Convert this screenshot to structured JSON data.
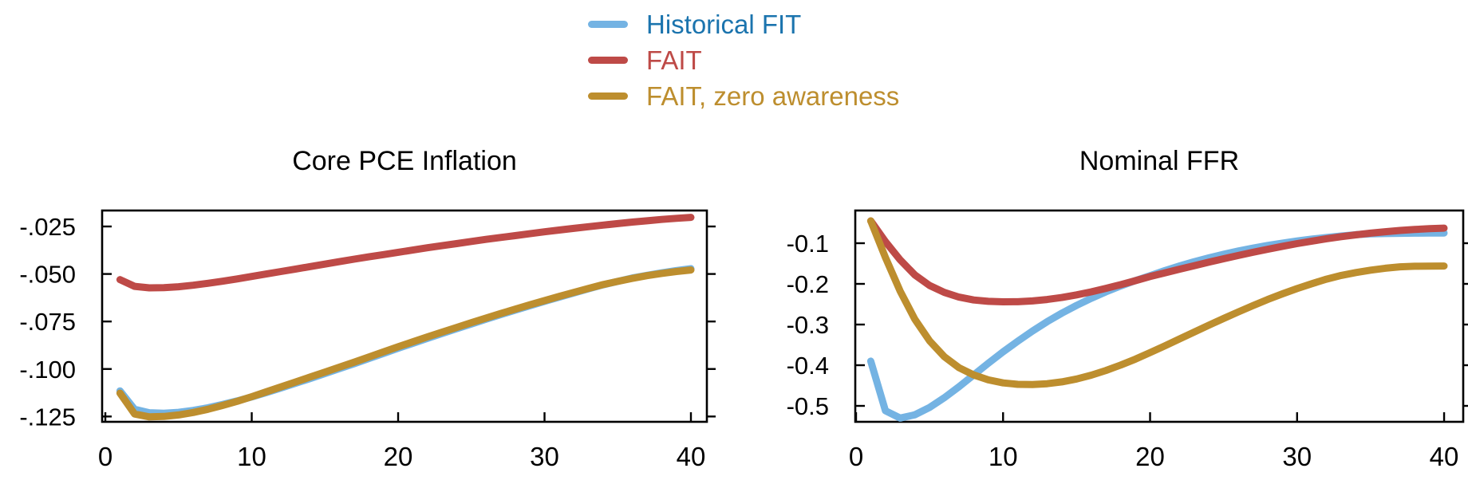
{
  "page": {
    "background": "#ffffff",
    "text_color": "#000000",
    "axis_color": "#000000"
  },
  "legend": {
    "position": "top-center",
    "items": [
      {
        "label": "Historical FIT",
        "swatch_color": "#74b3e3",
        "text_color": "#1b74ae"
      },
      {
        "label": "FAIT",
        "swatch_color": "#be4a47",
        "text_color": "#be4a47"
      },
      {
        "label": "FAIT, zero awareness",
        "swatch_color": "#bd8e2e",
        "text_color": "#bd8e2e"
      }
    ]
  },
  "chart_data": [
    {
      "type": "line",
      "title": "Core PCE Inflation",
      "xlabel": "",
      "ylabel": "",
      "grid": false,
      "x_range": [
        -0.22,
        41.09
      ],
      "y_range": [
        -0.1278,
        -0.0166
      ],
      "x_ticks": [
        {
          "value": 0,
          "label": "0"
        },
        {
          "value": 10,
          "label": "10"
        },
        {
          "value": 20,
          "label": "20"
        },
        {
          "value": 30,
          "label": "30"
        },
        {
          "value": 40,
          "label": "40"
        }
      ],
      "y_ticks": [
        {
          "value": -0.025,
          "label": "-.025"
        },
        {
          "value": -0.05,
          "label": "-.050"
        },
        {
          "value": -0.075,
          "label": "-.075"
        },
        {
          "value": -0.1,
          "label": "-.100"
        },
        {
          "value": -0.125,
          "label": "-.125"
        }
      ],
      "x": [
        1,
        2,
        3,
        4,
        5,
        6,
        7,
        8,
        9,
        10,
        11,
        12,
        13,
        14,
        15,
        16,
        17,
        18,
        19,
        20,
        21,
        22,
        23,
        24,
        25,
        26,
        27,
        28,
        29,
        30,
        31,
        32,
        33,
        34,
        35,
        36,
        37,
        38,
        39,
        40
      ],
      "series": [
        {
          "name": "Historical FIT",
          "color": "#74b3e3",
          "values": [
            -0.1115,
            -0.1212,
            -0.123,
            -0.1233,
            -0.1228,
            -0.1218,
            -0.1204,
            -0.1187,
            -0.1168,
            -0.1147,
            -0.1124,
            -0.11,
            -0.1075,
            -0.105,
            -0.1024,
            -0.0998,
            -0.0972,
            -0.0945,
            -0.0918,
            -0.0891,
            -0.0865,
            -0.0839,
            -0.0813,
            -0.0788,
            -0.0763,
            -0.0738,
            -0.0714,
            -0.069,
            -0.0667,
            -0.0644,
            -0.0622,
            -0.06,
            -0.0578,
            -0.0557,
            -0.0539,
            -0.0521,
            -0.0507,
            -0.0494,
            -0.0482,
            -0.0472
          ]
        },
        {
          "name": "FAIT",
          "color": "#be4a47",
          "values": [
            -0.053,
            -0.0565,
            -0.0573,
            -0.0572,
            -0.0567,
            -0.0559,
            -0.0549,
            -0.0538,
            -0.0526,
            -0.0513,
            -0.05,
            -0.0487,
            -0.0474,
            -0.0461,
            -0.0448,
            -0.0435,
            -0.0422,
            -0.041,
            -0.0398,
            -0.0386,
            -0.0374,
            -0.0362,
            -0.0351,
            -0.034,
            -0.0329,
            -0.0318,
            -0.0308,
            -0.0298,
            -0.0288,
            -0.0278,
            -0.0269,
            -0.026,
            -0.0251,
            -0.0243,
            -0.0235,
            -0.0227,
            -0.022,
            -0.0213,
            -0.0207,
            -0.0202
          ]
        },
        {
          "name": "FAIT, zero awareness",
          "color": "#bd8e2e",
          "values": [
            -0.1127,
            -0.1237,
            -0.1252,
            -0.125,
            -0.1242,
            -0.1229,
            -0.1212,
            -0.1192,
            -0.117,
            -0.1146,
            -0.112,
            -0.1094,
            -0.1068,
            -0.1042,
            -0.1016,
            -0.099,
            -0.0964,
            -0.0937,
            -0.091,
            -0.0883,
            -0.0857,
            -0.0831,
            -0.0806,
            -0.0781,
            -0.0756,
            -0.0732,
            -0.0708,
            -0.0685,
            -0.0662,
            -0.064,
            -0.0618,
            -0.0597,
            -0.0576,
            -0.0556,
            -0.0539,
            -0.0523,
            -0.0509,
            -0.0497,
            -0.0487,
            -0.0479
          ]
        }
      ]
    },
    {
      "type": "line",
      "title": "Nominal FFR",
      "xlabel": "",
      "ylabel": "",
      "grid": false,
      "x_range": [
        -0.054,
        41.3
      ],
      "y_range": [
        -0.5392,
        -0.0196
      ],
      "x_ticks": [
        {
          "value": 0,
          "label": "0"
        },
        {
          "value": 10,
          "label": "10"
        },
        {
          "value": 20,
          "label": "20"
        },
        {
          "value": 30,
          "label": "30"
        },
        {
          "value": 40,
          "label": "40"
        }
      ],
      "y_ticks": [
        {
          "value": -0.1,
          "label": "-0.1"
        },
        {
          "value": -0.2,
          "label": "-0.2"
        },
        {
          "value": -0.3,
          "label": "-0.3"
        },
        {
          "value": -0.4,
          "label": "-0.4"
        },
        {
          "value": -0.5,
          "label": "-0.5"
        }
      ],
      "x": [
        1,
        2,
        3,
        4,
        5,
        6,
        7,
        8,
        9,
        10,
        11,
        12,
        13,
        14,
        15,
        16,
        17,
        18,
        19,
        20,
        21,
        22,
        23,
        24,
        25,
        26,
        27,
        28,
        29,
        30,
        31,
        32,
        33,
        34,
        35,
        36,
        37,
        38,
        39,
        40
      ],
      "series": [
        {
          "name": "Historical FIT",
          "color": "#74b3e3",
          "values": [
            -0.39,
            -0.512,
            -0.53,
            -0.522,
            -0.504,
            -0.48,
            -0.453,
            -0.424,
            -0.395,
            -0.367,
            -0.341,
            -0.316,
            -0.293,
            -0.272,
            -0.253,
            -0.2355,
            -0.2195,
            -0.205,
            -0.192,
            -0.18,
            -0.1675,
            -0.156,
            -0.1455,
            -0.136,
            -0.1272,
            -0.1192,
            -0.112,
            -0.1055,
            -0.0997,
            -0.0945,
            -0.09,
            -0.086,
            -0.0823,
            -0.079,
            -0.077,
            -0.0762,
            -0.0756,
            -0.0752,
            -0.0749,
            -0.0748
          ]
        },
        {
          "name": "FAIT",
          "color": "#be4a47",
          "values": [
            -0.045,
            -0.096,
            -0.141,
            -0.178,
            -0.204,
            -0.221,
            -0.2325,
            -0.2395,
            -0.243,
            -0.2442,
            -0.244,
            -0.242,
            -0.2385,
            -0.2335,
            -0.227,
            -0.2195,
            -0.211,
            -0.202,
            -0.1922,
            -0.182,
            -0.173,
            -0.164,
            -0.1552,
            -0.1466,
            -0.1382,
            -0.1301,
            -0.1223,
            -0.1148,
            -0.1077,
            -0.101,
            -0.0948,
            -0.0891,
            -0.084,
            -0.0794,
            -0.0753,
            -0.0717,
            -0.0687,
            -0.0662,
            -0.0643,
            -0.063
          ]
        },
        {
          "name": "FAIT, zero awareness",
          "color": "#bd8e2e",
          "values": [
            -0.045,
            -0.135,
            -0.218,
            -0.287,
            -0.34,
            -0.379,
            -0.406,
            -0.424,
            -0.436,
            -0.4435,
            -0.447,
            -0.4475,
            -0.4455,
            -0.441,
            -0.434,
            -0.4245,
            -0.413,
            -0.3995,
            -0.385,
            -0.369,
            -0.3525,
            -0.3355,
            -0.3185,
            -0.3015,
            -0.285,
            -0.269,
            -0.2535,
            -0.2385,
            -0.2245,
            -0.2115,
            -0.1995,
            -0.1885,
            -0.1793,
            -0.1722,
            -0.1663,
            -0.1616,
            -0.1581,
            -0.1567,
            -0.1562,
            -0.156
          ]
        }
      ]
    }
  ]
}
